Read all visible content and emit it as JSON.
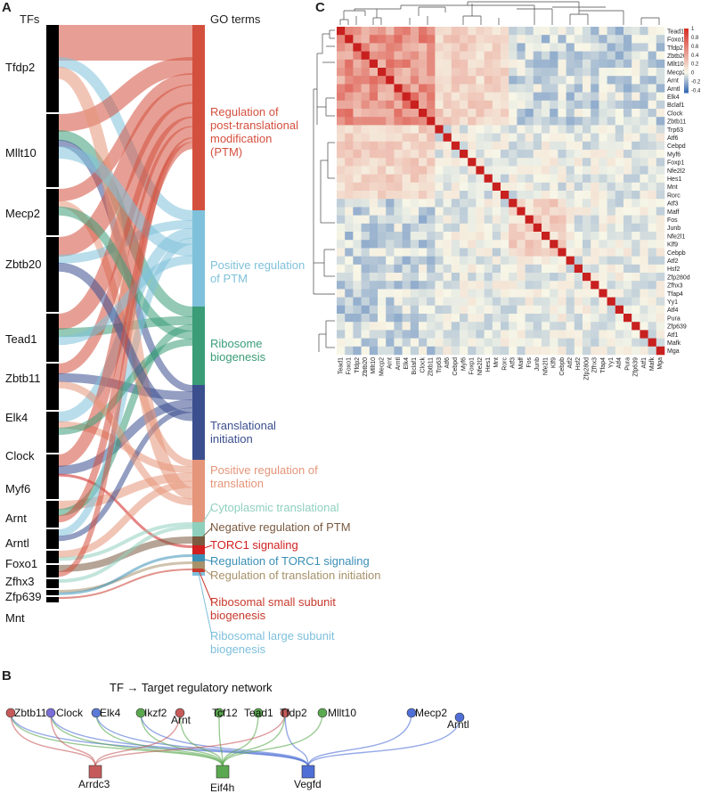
{
  "panels": {
    "a": "A",
    "b": "B",
    "c": "C"
  },
  "sankey": {
    "tfs_header": "TFs",
    "go_header": "GO terms",
    "tfs": [
      "Tfdp2",
      "Mllt10",
      "Mecp2",
      "Zbtb20",
      "Tead1",
      "Zbtb11",
      "Elk4",
      "Clock",
      "Myf6",
      "Arnt",
      "Arntl",
      "Foxo1",
      "Zfhx3",
      "Zfp639",
      "Mnt"
    ],
    "go_terms": [
      {
        "lines": [
          "Regulation of",
          "post-translational",
          "modification",
          "(PTM)"
        ],
        "color": "#d4503e"
      },
      {
        "lines": [
          "Positive regulation",
          "of PTM"
        ],
        "color": "#7fc1da"
      },
      {
        "lines": [
          "Ribosome",
          "biogenesis"
        ],
        "color": "#3a9d78"
      },
      {
        "lines": [
          "Translational",
          "initiation"
        ],
        "color": "#3b4f8f"
      },
      {
        "lines": [
          "Positive regulation of",
          "translation"
        ],
        "color": "#e5957a"
      },
      {
        "lines": [
          "Cytoplasmic translational"
        ],
        "color": "#8fd0bd"
      },
      {
        "lines": [
          "Negative regulation of PTM"
        ],
        "color": "#7a5a40"
      },
      {
        "lines": [
          "TORC1 signaling"
        ],
        "color": "#d21f1f"
      },
      {
        "lines": [
          "Regulation of TORC1 signaling"
        ],
        "color": "#3a8fb6"
      },
      {
        "lines": [
          "Regulation of translation initiation"
        ],
        "color": "#a8926a"
      },
      {
        "lines": [
          "Ribosomal small subunit",
          "biogenesis"
        ],
        "color": "#c8392c"
      },
      {
        "lines": [
          "Ribosomal large subunit",
          "biogenesis"
        ],
        "color": "#7dbfdc"
      }
    ]
  },
  "network": {
    "title": "TF → Target regulatory network",
    "tfs": [
      "Zbtb11",
      "Clock",
      "Elk4",
      "Ikzf2",
      "Arnt",
      "Tcf12",
      "Tead1",
      "Tfdp2",
      "Mllt10",
      "Mecp2",
      "Arntl"
    ],
    "targets": [
      {
        "name": "Arrdc3",
        "color": "#c65a5a"
      },
      {
        "name": "Eif4h",
        "color": "#5aa84f"
      },
      {
        "name": "Vegfd",
        "color": "#4f6fd6"
      }
    ]
  },
  "chart_data": {
    "type": "heatmap",
    "rows": [
      "Tead1",
      "Foxo1",
      "Tfdp2",
      "Zbtb20",
      "Mllt10",
      "Mecp2",
      "Arnt",
      "Arntl",
      "Elk4",
      "Bclaf1",
      "Clock",
      "Zbtb11",
      "Trp63",
      "Atf6",
      "Cebpd",
      "Myf6",
      "Foxp1",
      "Nfe2l2",
      "Hes1",
      "Mnt",
      "Rorc",
      "Atf3",
      "Maff",
      "Fos",
      "Junb",
      "Nfe2l1",
      "Klf9",
      "Cebpb",
      "Atf2",
      "Hsf2",
      "Zfp280d",
      "Zfhx3",
      "Tfap4",
      "Yy1",
      "Atf4",
      "Pura",
      "Zfp639",
      "Atf1",
      "Mafk",
      "Mga"
    ],
    "columns": [
      "Tead1",
      "Foxo1",
      "Tfdp2",
      "Zbtb20",
      "Mllt10",
      "Mecp2",
      "Arnt",
      "Arntl",
      "Elk4",
      "Bclaf1",
      "Clock",
      "Zbtb11",
      "Trp63",
      "Atf6",
      "Cebpd",
      "Myf6",
      "Foxp1",
      "Nfe2l2",
      "Hes1",
      "Mnt",
      "Rorc",
      "Atf3",
      "Maff",
      "Fos",
      "Junb",
      "Nfe2l1",
      "Klf9",
      "Cebpb",
      "Atf2",
      "Hsf2",
      "Zfp280d",
      "Zfhx3",
      "Tfap4",
      "Yy1",
      "Atf4",
      "Pura",
      "Zfp639",
      "Atf1",
      "Mafk",
      "Mga"
    ],
    "colorbar_ticks": [
      "1",
      "0.8",
      "0.6",
      "0.4",
      "0.2",
      "0",
      "-0.2",
      "-0.4"
    ],
    "colorbar_values": [
      1,
      0.8,
      0.6,
      0.4,
      0.2,
      0,
      -0.2,
      -0.4
    ],
    "range": [
      -0.45,
      1
    ],
    "colors": {
      "low": "#3a6db5",
      "mid": "#f7f7e8",
      "high": "#d73027"
    }
  }
}
